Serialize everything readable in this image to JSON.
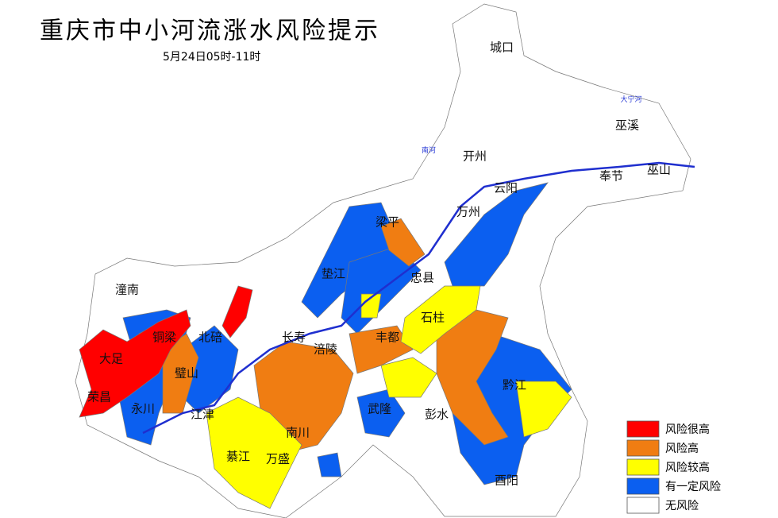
{
  "header": {
    "title": "重庆市中小河流涨水风险提示",
    "subtitle": "5月24日05时-11时"
  },
  "legend": [
    {
      "label": "风险很高",
      "color": "#ff0000"
    },
    {
      "label": "风险高",
      "color": "#f07d12"
    },
    {
      "label": "风险较高",
      "color": "#ffff00"
    },
    {
      "label": "有一定风险",
      "color": "#0b5ff0"
    },
    {
      "label": "无风险",
      "color": "#ffffff"
    }
  ],
  "places": [
    "城口",
    "巫溪",
    "开州",
    "奉节",
    "巫山",
    "云阳",
    "万州",
    "梁平",
    "垫江",
    "忠县",
    "石柱",
    "丰都",
    "涪陵",
    "长寿",
    "潼南",
    "铜梁",
    "大足",
    "荣昌",
    "永川",
    "璧山",
    "北碚",
    "江津",
    "綦江",
    "万盛",
    "南川",
    "武隆",
    "彭水",
    "黔江",
    "酉阳"
  ],
  "rivers": [
    "大宁河",
    "南河"
  ]
}
